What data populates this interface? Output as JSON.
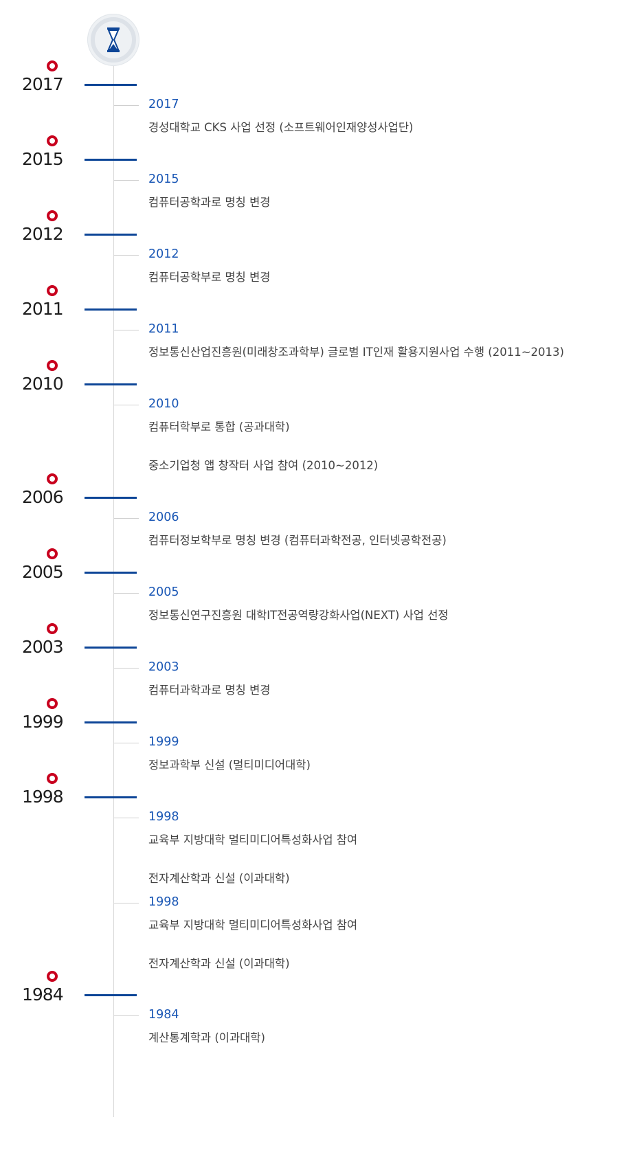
{
  "years": [
    {
      "label": "2017",
      "entries": [
        {
          "year": "2017",
          "texts": [
            "경성대학교 CKS 사업 선정 (소프트웨어인재양성사업단)"
          ]
        }
      ]
    },
    {
      "label": "2015",
      "entries": [
        {
          "year": "2015",
          "texts": [
            "컴퓨터공학과로 명칭 변경"
          ]
        }
      ]
    },
    {
      "label": "2012",
      "entries": [
        {
          "year": "2012",
          "texts": [
            "컴퓨터공학부로 명칭 변경"
          ]
        }
      ]
    },
    {
      "label": "2011",
      "entries": [
        {
          "year": "2011",
          "texts": [
            "정보통신산업진흥원(미래창조과학부) 글로벌 IT인재 활용지원사업 수행 (2011~2013)"
          ]
        }
      ]
    },
    {
      "label": "2010",
      "entries": [
        {
          "year": "2010",
          "texts": [
            "컴퓨터학부로 통합 (공과대학)",
            "중소기업청 앱 창작터 사업 참여 (2010~2012)"
          ]
        }
      ]
    },
    {
      "label": "2006",
      "entries": [
        {
          "year": "2006",
          "texts": [
            "컴퓨터정보학부로 명칭 변경 (컴퓨터과학전공, 인터넷공학전공)"
          ]
        }
      ]
    },
    {
      "label": "2005",
      "entries": [
        {
          "year": "2005",
          "texts": [
            "정보통신연구진흥원 대학IT전공역량강화사업(NEXT) 사업 선정"
          ]
        }
      ]
    },
    {
      "label": "2003",
      "entries": [
        {
          "year": "2003",
          "texts": [
            "컴퓨터과학과로 명칭 변경"
          ]
        }
      ]
    },
    {
      "label": "1999",
      "entries": [
        {
          "year": "1999",
          "texts": [
            "정보과학부 신설 (멀티미디어대학)"
          ]
        }
      ]
    },
    {
      "label": "1998",
      "entries": [
        {
          "year": "1998",
          "texts": [
            "교육부 지방대학 멀티미디어특성화사업 참여",
            "전자계산학과 신설 (이과대학)"
          ]
        },
        {
          "year": "1998",
          "texts": [
            "교육부 지방대학 멀티미디어특성화사업 참여",
            "전자계산학과 신설 (이과대학)"
          ]
        }
      ]
    },
    {
      "label": "1984",
      "entries": [
        {
          "year": "1984",
          "texts": [
            "계산통계학과 (이과대학)"
          ]
        }
      ]
    }
  ]
}
